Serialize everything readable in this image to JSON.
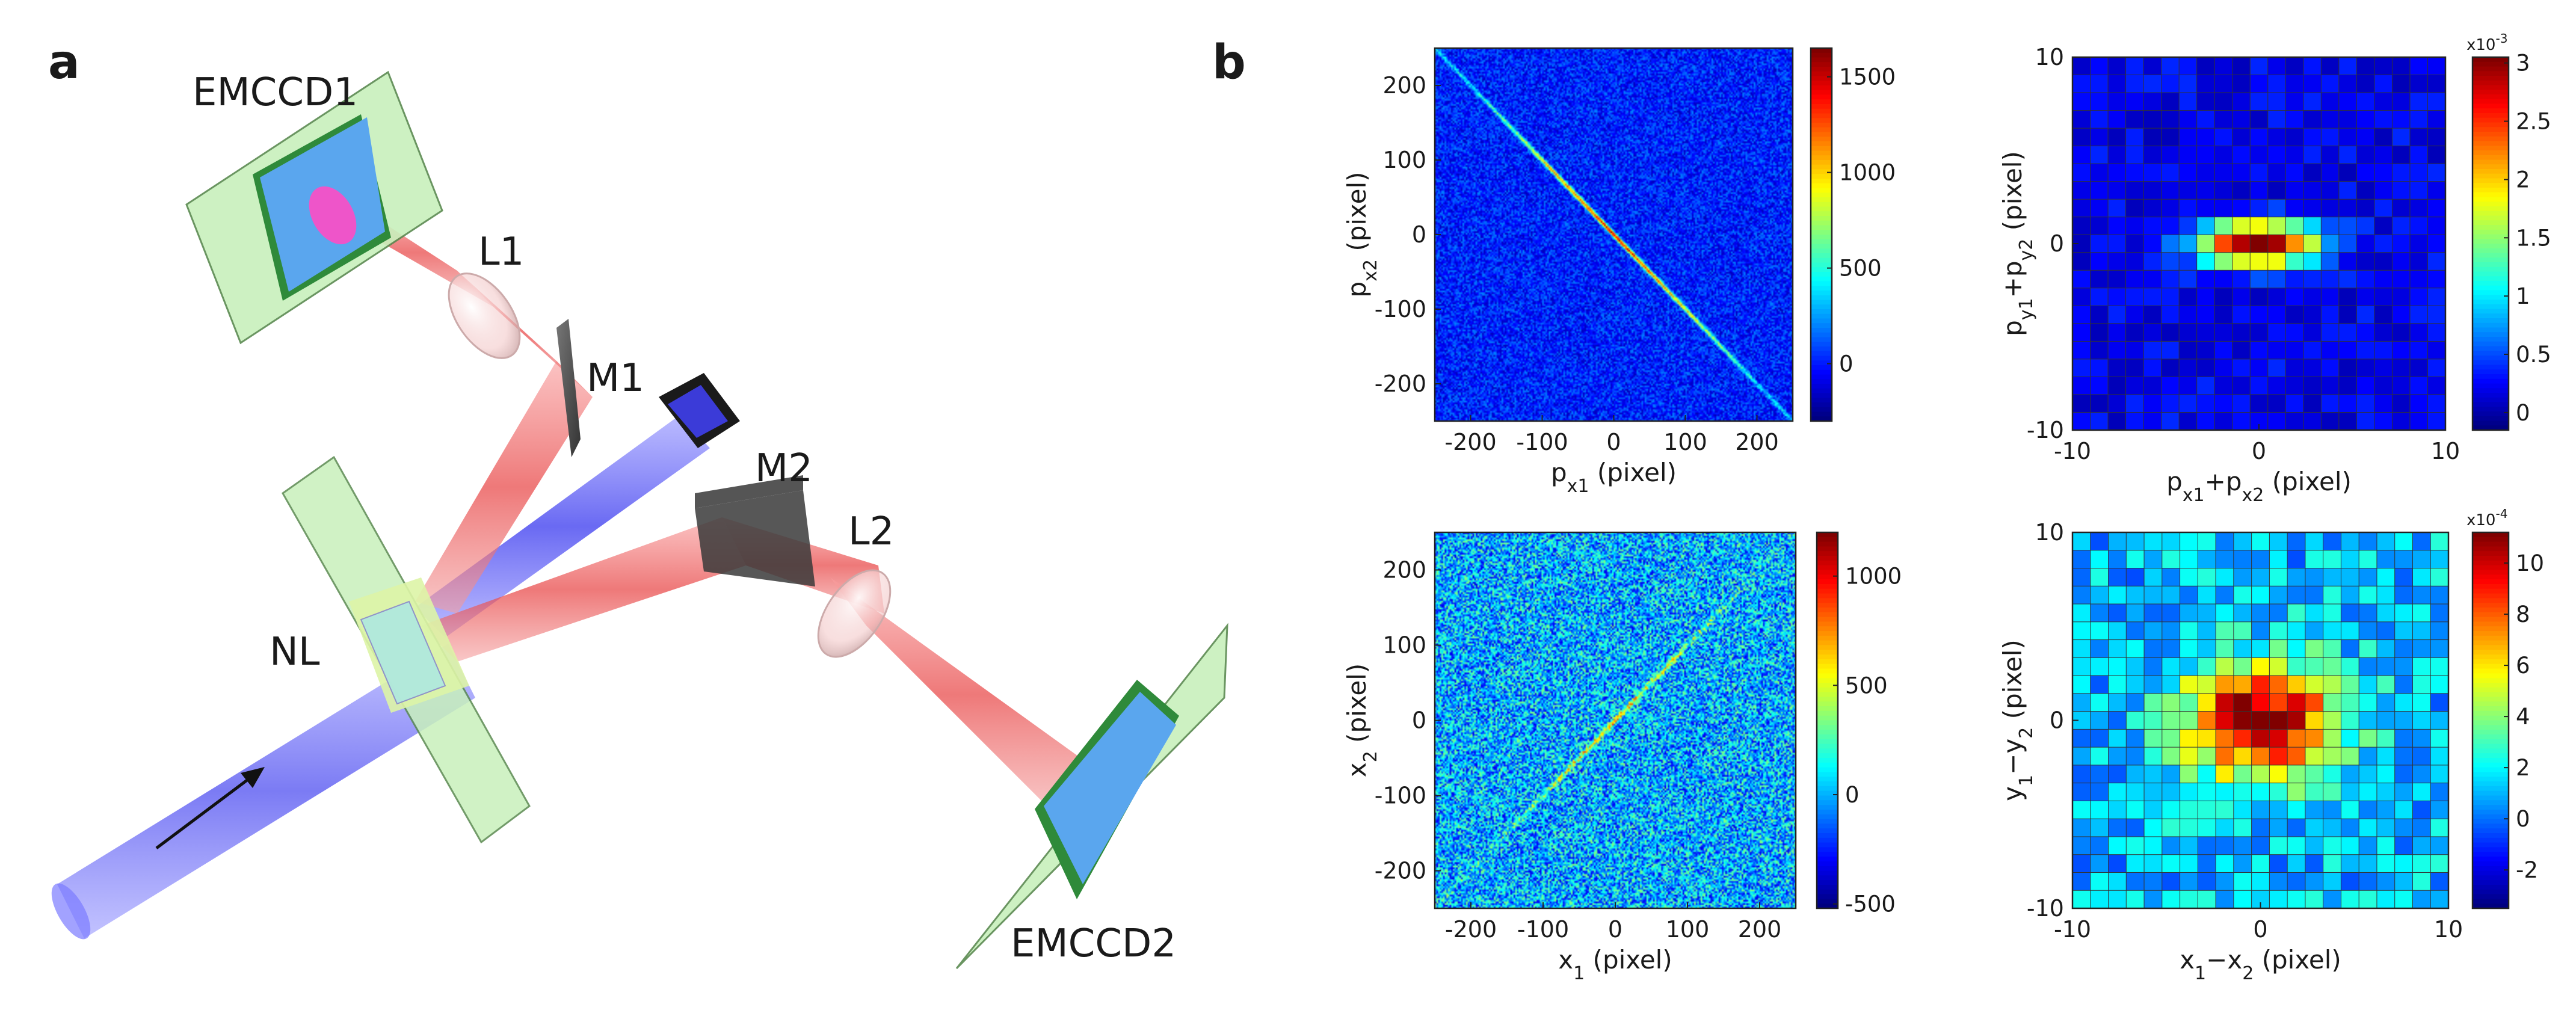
{
  "figure": {
    "panel_a": {
      "letter": "a",
      "labels": {
        "emccd1": "EMCCD1",
        "emccd2": "EMCCD2",
        "l1": "L1",
        "l2": "L2",
        "m1": "M1",
        "m2": "M2",
        "nl": "NL"
      }
    },
    "panel_b": {
      "letter": "b"
    },
    "colors": {
      "pump": "#3b3bf0",
      "downconverted": "#ee4b4b",
      "plane": "#bff0b0",
      "sensor": "#5aa6ee"
    }
  },
  "chart_data": [
    {
      "type": "heatmap",
      "description_id": "momentum-correlation",
      "x_tick_labels": [
        "-200",
        "-100",
        "0",
        "100",
        "200"
      ],
      "y_tick_labels": [
        "200",
        "100",
        "0",
        "-100",
        "-200"
      ],
      "x_ticks": [
        -200,
        -100,
        0,
        100,
        200
      ],
      "y_ticks": [
        200,
        100,
        0,
        -100,
        -200
      ],
      "xlim": [
        -250,
        250
      ],
      "ylim": [
        -250,
        250
      ],
      "xlabel": {
        "base": "p",
        "sub": "x1",
        "unit": " (pixel)"
      },
      "ylabel": {
        "base": "p",
        "sub": "x2",
        "unit": " (pixel)"
      },
      "colorbar": {
        "min": -300,
        "max": 1650,
        "ticks": [
          0,
          500,
          1000,
          1500
        ],
        "tick_labels": [
          "0",
          "500",
          "1000",
          "1500"
        ]
      },
      "feature": {
        "kind": "anti-diagonal",
        "peak": 1500,
        "background": 0
      }
    },
    {
      "type": "heatmap",
      "description_id": "momentum-sum",
      "x_tick_labels": [
        "-10",
        "0",
        "10"
      ],
      "y_tick_labels": [
        "10",
        "0",
        "-10"
      ],
      "x_ticks": [
        -10,
        0,
        10
      ],
      "y_ticks": [
        10,
        0,
        -10
      ],
      "xlim": [
        -10,
        10
      ],
      "ylim": [
        -10,
        10
      ],
      "xlabel": {
        "parts": [
          [
            "p",
            "x1"
          ],
          [
            "+p",
            "x2"
          ]
        ],
        "unit": " (pixel)"
      },
      "ylabel": {
        "parts": [
          [
            "p",
            "y1"
          ],
          [
            "+p",
            "y2"
          ]
        ],
        "unit": " (pixel)"
      },
      "colorbar": {
        "min": -0.15,
        "max": 3.05,
        "ticks": [
          0,
          0.5,
          1,
          1.5,
          2,
          2.5,
          3
        ],
        "tick_labels": [
          "0",
          "0.5",
          "1",
          "1.5",
          "2",
          "2.5",
          "3"
        ],
        "multiplier": "x10",
        "multiplier_exp": "-3"
      },
      "peak": 3.0,
      "background": 0.2,
      "sigma_x": 2.3,
      "sigma_y": 0.9
    },
    {
      "type": "heatmap",
      "description_id": "position-correlation",
      "x_tick_labels": [
        "-200",
        "-100",
        "0",
        "100",
        "200"
      ],
      "y_tick_labels": [
        "200",
        "100",
        "0",
        "-100",
        "-200"
      ],
      "x_ticks": [
        -200,
        -100,
        0,
        100,
        200
      ],
      "y_ticks": [
        200,
        100,
        0,
        -100,
        -200
      ],
      "xlim": [
        -250,
        250
      ],
      "ylim": [
        -250,
        250
      ],
      "xlabel": {
        "base": "x",
        "sub": "1",
        "unit": " (pixel)"
      },
      "ylabel": {
        "base": "x",
        "sub": "2",
        "unit": " (pixel)"
      },
      "colorbar": {
        "min": -520,
        "max": 1200,
        "ticks": [
          -500,
          0,
          500,
          1000
        ],
        "tick_labels": [
          "-500",
          "0",
          "500",
          "1000"
        ]
      },
      "feature": {
        "kind": "diagonal",
        "peak": 700,
        "background": 0
      }
    },
    {
      "type": "heatmap",
      "description_id": "position-difference",
      "x_tick_labels": [
        "-10",
        "0",
        "10"
      ],
      "y_tick_labels": [
        "10",
        "0",
        "-10"
      ],
      "x_ticks": [
        -10,
        0,
        10
      ],
      "y_ticks": [
        10,
        0,
        -10
      ],
      "xlim": [
        -10,
        10
      ],
      "ylim": [
        -10,
        10
      ],
      "xlabel": {
        "parts": [
          [
            "x",
            "1"
          ],
          [
            "−x",
            "2"
          ]
        ],
        "unit": " (pixel)"
      },
      "ylabel": {
        "parts": [
          [
            "y",
            "1"
          ],
          [
            "−y",
            "2"
          ]
        ],
        "unit": " (pixel)"
      },
      "colorbar": {
        "min": -3.5,
        "max": 11.2,
        "ticks": [
          -2,
          0,
          2,
          4,
          6,
          8,
          10
        ],
        "tick_labels": [
          "-2",
          "0",
          "2",
          "4",
          "6",
          "8",
          "10"
        ],
        "multiplier": "x10",
        "multiplier_exp": "-4"
      },
      "peak": 10.5,
      "background": 1.0,
      "sigma_x": 3.0,
      "sigma_y": 2.2
    }
  ]
}
